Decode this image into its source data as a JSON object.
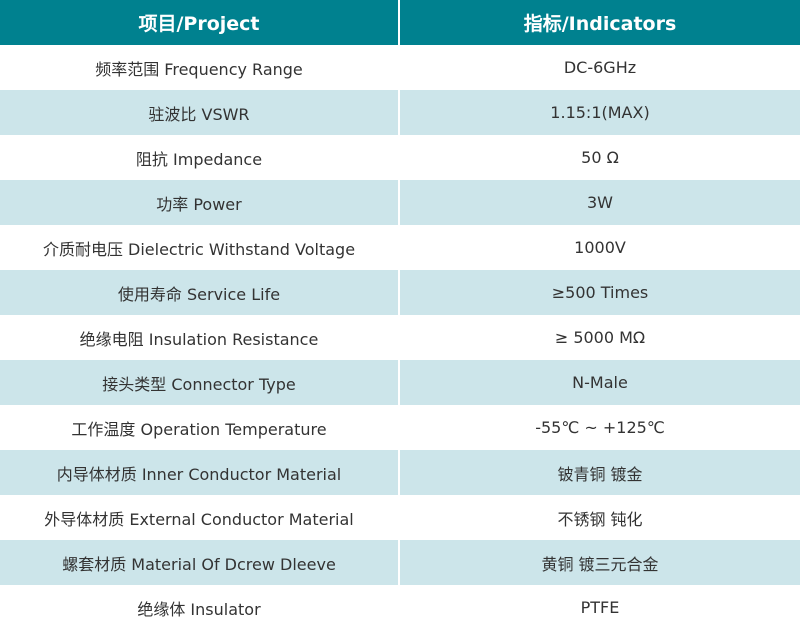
{
  "header": {
    "project": "项目/Project",
    "indicators": "指标/Indicators"
  },
  "colors": {
    "header_bg": "#00818f",
    "stripe_bg": "#cce5ea"
  },
  "rows": [
    {
      "project": "频率范围 Frequency Range",
      "value": "DC-6GHz"
    },
    {
      "project": "驻波比 VSWR",
      "value": "1.15:1(MAX)"
    },
    {
      "project": "阻抗 Impedance",
      "value": "50 Ω"
    },
    {
      "project": "功率 Power",
      "value": "3W"
    },
    {
      "project": "介质耐电压 Dielectric Withstand Voltage",
      "value": "1000V"
    },
    {
      "project": "使用寿命 Service Life",
      "value": "≥500 Times"
    },
    {
      "project": "绝缘电阻 Insulation Resistance",
      "value": "≥ 5000 MΩ"
    },
    {
      "project": "接头类型 Connector Type",
      "value": "N-Male"
    },
    {
      "project": "工作温度 Operation Temperature",
      "value": "-55℃ ~ +125℃"
    },
    {
      "project": "内导体材质 Inner Conductor Material",
      "value": "铍青铜 镀金"
    },
    {
      "project": "外导体材质 External Conductor Material",
      "value": "不锈钢 钝化"
    },
    {
      "project": "螺套材质 Material Of Dcrew Dleeve",
      "value": "黄铜 镀三元合金"
    },
    {
      "project": "绝缘体 Insulator",
      "value": "PTFE"
    }
  ]
}
